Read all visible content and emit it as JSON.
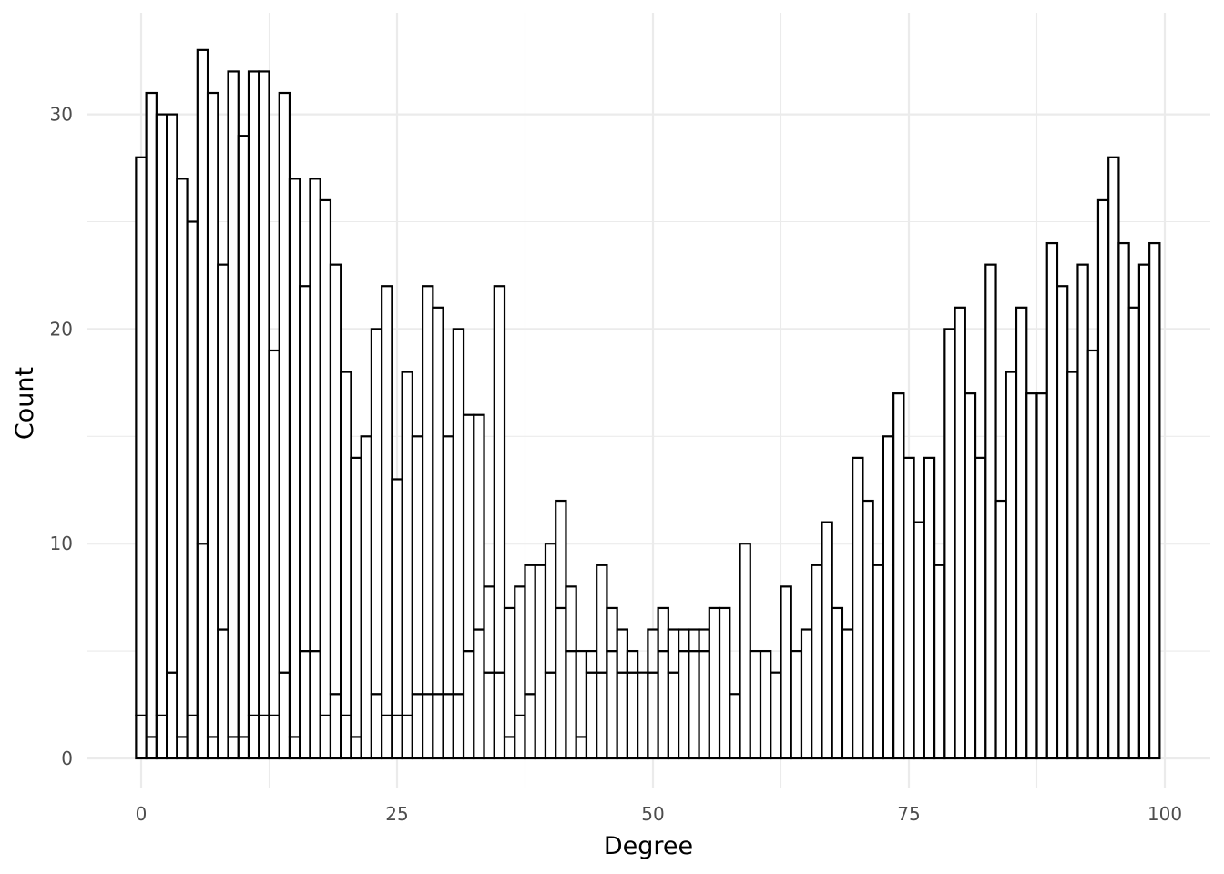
{
  "chart_data": {
    "type": "bar",
    "subtype": "stacked-histogram-outline",
    "title": "",
    "xlabel": "Degree",
    "ylabel": "Count",
    "xlim": [
      -1,
      100
    ],
    "ylim": [
      0,
      33
    ],
    "x_ticks": [
      0,
      25,
      50,
      75,
      100
    ],
    "y_ticks": [
      0,
      10,
      20,
      30
    ],
    "grid": true,
    "legend": "none",
    "bar_fill": "#ffffff",
    "bar_stroke": "#000000",
    "x": [
      0,
      1,
      2,
      3,
      4,
      5,
      6,
      7,
      8,
      9,
      10,
      11,
      12,
      13,
      14,
      15,
      16,
      17,
      18,
      19,
      20,
      21,
      22,
      23,
      24,
      25,
      26,
      27,
      28,
      29,
      30,
      31,
      32,
      33,
      34,
      35,
      36,
      37,
      38,
      39,
      40,
      41,
      42,
      43,
      44,
      45,
      46,
      47,
      48,
      49,
      50,
      51,
      52,
      53,
      54,
      55,
      56,
      57,
      58,
      59,
      60,
      61,
      62,
      63,
      64,
      65,
      66,
      67,
      68,
      69,
      70,
      71,
      72,
      73,
      74,
      75,
      76,
      77,
      78,
      79,
      80,
      81,
      82,
      83,
      84,
      85,
      86,
      87,
      88,
      89,
      90,
      91,
      92,
      93,
      94,
      95,
      96,
      97,
      98,
      99
    ],
    "series": [
      {
        "values": [
          2,
          1,
          2,
          4,
          1,
          2,
          10,
          1,
          6,
          1,
          1,
          2,
          2,
          2,
          4,
          1,
          5,
          5,
          2,
          3,
          2,
          1,
          0,
          3,
          2,
          2,
          2,
          3,
          3,
          3,
          3,
          3,
          5,
          6,
          4,
          4,
          1,
          2,
          3,
          0,
          4,
          7,
          5,
          1,
          4,
          4,
          5,
          4,
          4,
          4,
          4,
          5,
          4,
          5,
          5,
          5,
          0,
          0,
          0,
          0,
          0,
          0,
          0,
          0,
          0,
          0,
          0,
          0,
          0,
          0,
          0,
          0,
          0,
          0,
          0,
          0,
          0,
          0,
          0,
          0,
          0,
          0,
          0,
          0,
          0,
          0,
          0,
          0,
          0,
          0,
          0,
          0,
          0,
          0,
          0,
          0,
          0,
          0,
          0,
          0
        ]
      },
      {
        "values": [
          26,
          30,
          28,
          26,
          26,
          23,
          23,
          30,
          17,
          31,
          28,
          30,
          30,
          17,
          27,
          26,
          17,
          22,
          24,
          20,
          16,
          13,
          15,
          17,
          20,
          11,
          16,
          12,
          19,
          18,
          12,
          17,
          11,
          10,
          4,
          18,
          6,
          6,
          6,
          9,
          6,
          5,
          3,
          4,
          1,
          5,
          2,
          2,
          1,
          0,
          2,
          2,
          2,
          1,
          1,
          1,
          7,
          7,
          3,
          10,
          5,
          5,
          4,
          8,
          5,
          6,
          9,
          11,
          7,
          6,
          14,
          12,
          9,
          15,
          17,
          14,
          11,
          14,
          9,
          20,
          21,
          17,
          14,
          23,
          12,
          18,
          21,
          17,
          17,
          24,
          22,
          18,
          23,
          19,
          26,
          28,
          24,
          21,
          23,
          24
        ]
      }
    ],
    "totals": [
      28,
      31,
      30,
      30,
      27,
      25,
      33,
      31,
      23,
      32,
      29,
      32,
      32,
      19,
      31,
      27,
      22,
      27,
      26,
      23,
      18,
      14,
      15,
      20,
      22,
      13,
      18,
      15,
      22,
      21,
      15,
      20,
      16,
      16,
      8,
      22,
      7,
      8,
      9,
      9,
      10,
      12,
      8,
      5,
      5,
      9,
      7,
      6,
      5,
      4,
      6,
      7,
      6,
      6,
      6,
      6,
      7,
      7,
      3,
      10,
      5,
      5,
      4,
      8,
      5,
      6,
      9,
      11,
      7,
      6,
      14,
      12,
      9,
      15,
      17,
      14,
      11,
      14,
      9,
      20,
      21,
      17,
      14,
      23,
      12,
      18,
      21,
      17,
      17,
      24,
      22,
      18,
      23,
      19,
      26,
      28,
      24,
      21,
      23,
      24
    ]
  }
}
